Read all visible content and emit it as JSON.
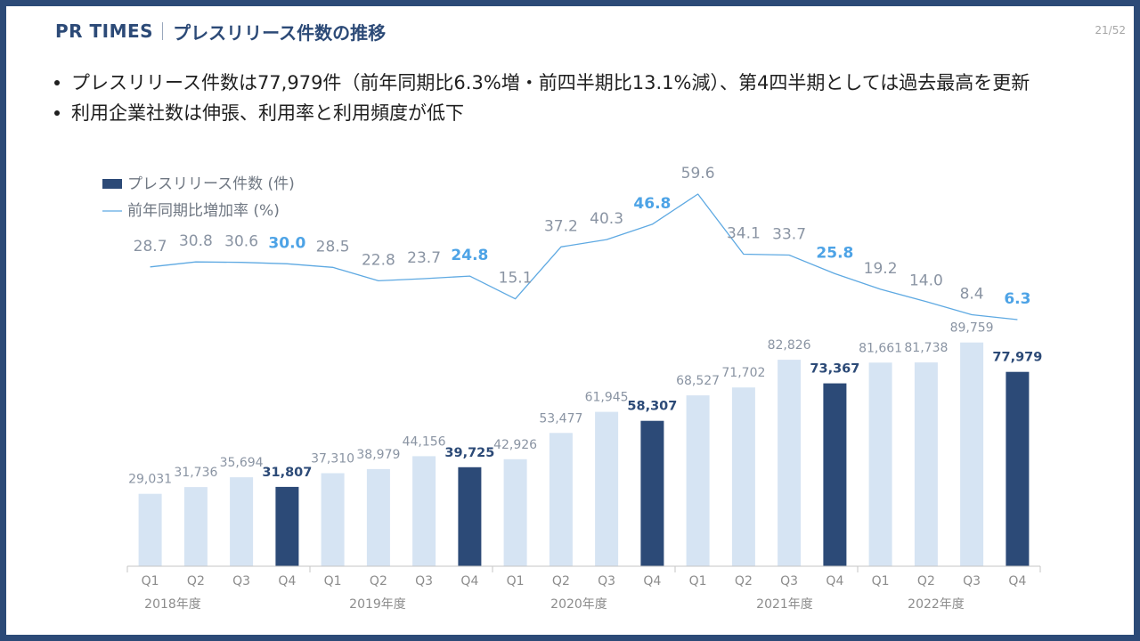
{
  "header": {
    "brand": "PR TIMES",
    "title": "プレスリリース件数の推移",
    "page_number": "21/52"
  },
  "bullets": [
    "プレスリリース件数は77,979件（前年同期比6.3%増・前四半期比13.1%減）、第4四半期としては過去最高を更新",
    "利用企業社数は伸張、利用率と利用頻度が低下"
  ],
  "colors": {
    "frame": "#2c4a77",
    "title": "#2c4a77"
  },
  "chart_data": {
    "type": "bar",
    "categories": [
      "Q1",
      "Q2",
      "Q3",
      "Q4",
      "Q1",
      "Q2",
      "Q3",
      "Q4",
      "Q1",
      "Q2",
      "Q3",
      "Q4",
      "Q1",
      "Q2",
      "Q3",
      "Q4",
      "Q1",
      "Q2",
      "Q3",
      "Q4"
    ],
    "groups": [
      "2018年度",
      "2019年度",
      "2020年度",
      "2021年度",
      "2022年度"
    ],
    "series": [
      {
        "name": "プレスリリース件数 (件)",
        "type": "bar",
        "values": [
          29031,
          31736,
          35694,
          31807,
          37310,
          38979,
          44156,
          39725,
          42926,
          53477,
          61945,
          58307,
          68527,
          71702,
          82826,
          73367,
          81661,
          81738,
          89759,
          77979
        ]
      },
      {
        "name": "前年同期比増加率 (%)",
        "type": "line",
        "values": [
          28.7,
          30.8,
          30.6,
          30.0,
          28.5,
          22.8,
          23.7,
          24.8,
          15.1,
          37.2,
          40.3,
          46.8,
          59.6,
          34.1,
          33.7,
          25.8,
          19.2,
          14.0,
          8.4,
          6.3
        ]
      }
    ],
    "highlight_indices": [
      3,
      7,
      11,
      15,
      19
    ],
    "ylim": [
      0,
      100000
    ],
    "y2lim": [
      0,
      70
    ],
    "grid": false,
    "legend": "top-left",
    "colors": {
      "bar": "#d6e4f3",
      "bar_highlight": "#2c4a77",
      "line": "#5ea9e2",
      "label": "#8a94a3",
      "line_label_highlight": "#4da3e6",
      "axis_label": "#8c8c8c",
      "axis": "#c6c6c6"
    }
  }
}
